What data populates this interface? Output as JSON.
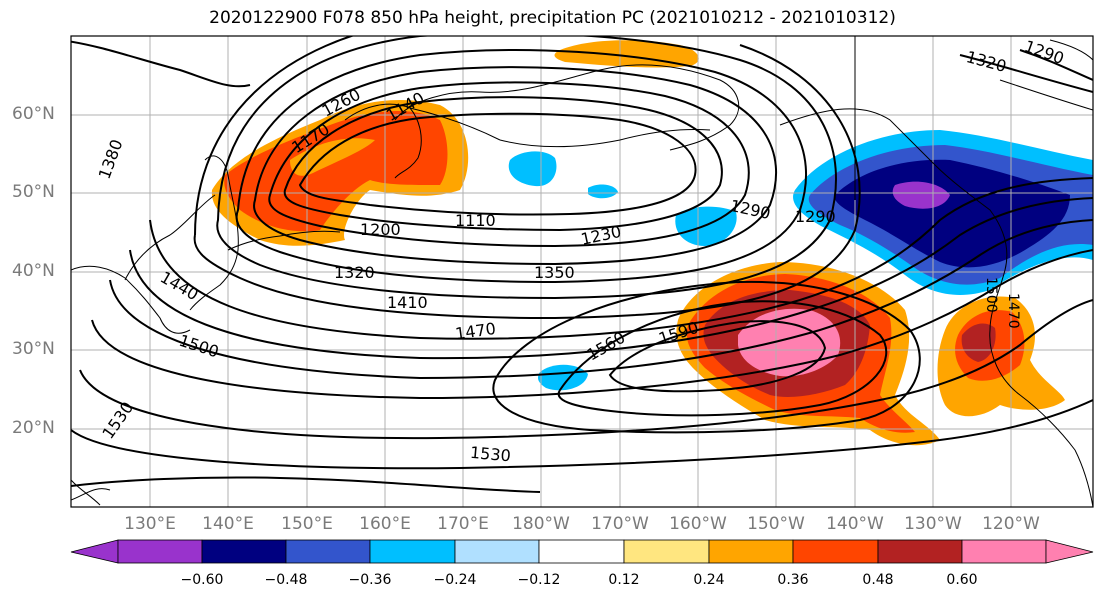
{
  "title": "2020122900 F078 850 hPa height, precipitation PC (2021010212 - 2021010312)",
  "lat_labels": [
    "60°N",
    "50°N",
    "40°N",
    "30°N",
    "20°N"
  ],
  "lon_labels": [
    "130°E",
    "140°E",
    "150°E",
    "160°E",
    "170°E",
    "180°W",
    "170°W",
    "160°W",
    "150°W",
    "140°W",
    "130°W",
    "120°W"
  ],
  "colorbar": {
    "colors": [
      "#9933cc",
      "#000080",
      "#3355cc",
      "#00bfff",
      "#b0e0ff",
      "#ffffff",
      "#ffe680",
      "#ffa500",
      "#ff4500",
      "#b22222",
      "#ff80b0"
    ],
    "ticks": [
      "−0.60",
      "−0.48",
      "−0.36",
      "−0.24",
      "−0.12",
      "0.12",
      "0.24",
      "0.36",
      "0.48",
      "0.60"
    ]
  },
  "contour_labels": [
    "1260",
    "1170",
    "1140",
    "1110",
    "1200",
    "1230",
    "1290",
    "1290",
    "1320",
    "1350",
    "1410",
    "1470",
    "1440",
    "1500",
    "1560",
    "1590",
    "1530",
    "1530",
    "1380",
    "1320",
    "1290",
    "1470",
    "1500"
  ]
}
